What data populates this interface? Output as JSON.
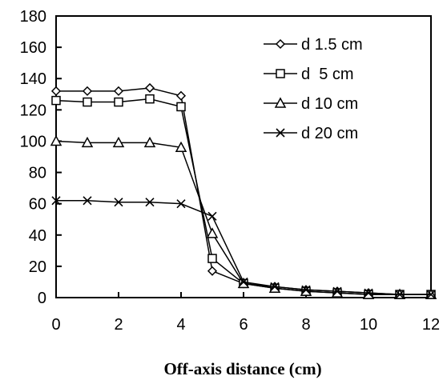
{
  "chart_data": {
    "type": "line",
    "title": "",
    "xlabel": "Off-axis distance (cm)",
    "ylabel": "",
    "xlim": [
      0,
      12
    ],
    "ylim": [
      0,
      180
    ],
    "x_ticks": [
      0,
      2,
      4,
      6,
      8,
      10,
      12
    ],
    "y_ticks": [
      0,
      20,
      40,
      60,
      80,
      100,
      120,
      140,
      160,
      180
    ],
    "grid": false,
    "legend_position": "top-right",
    "x": [
      0,
      1,
      2,
      3,
      4,
      5,
      6,
      7,
      8,
      9,
      10,
      11,
      12
    ],
    "series": [
      {
        "name": "d 1.5 cm",
        "marker": "diamond",
        "values": [
          132,
          132,
          132,
          134,
          129,
          17,
          9,
          7,
          5,
          4,
          3,
          2,
          2
        ]
      },
      {
        "name": "d  5 cm",
        "marker": "square",
        "values": [
          126,
          125,
          125,
          127,
          122,
          25,
          9,
          6,
          4,
          3,
          2,
          2,
          2
        ]
      },
      {
        "name": "d 10 cm",
        "marker": "triangle",
        "values": [
          100,
          99,
          99,
          99,
          96,
          41,
          9,
          6,
          4,
          3,
          2,
          2,
          2
        ]
      },
      {
        "name": "d 20 cm",
        "marker": "x",
        "values": [
          62,
          62,
          61,
          61,
          60,
          52,
          10,
          7,
          5,
          4,
          3,
          2,
          2
        ]
      }
    ]
  }
}
